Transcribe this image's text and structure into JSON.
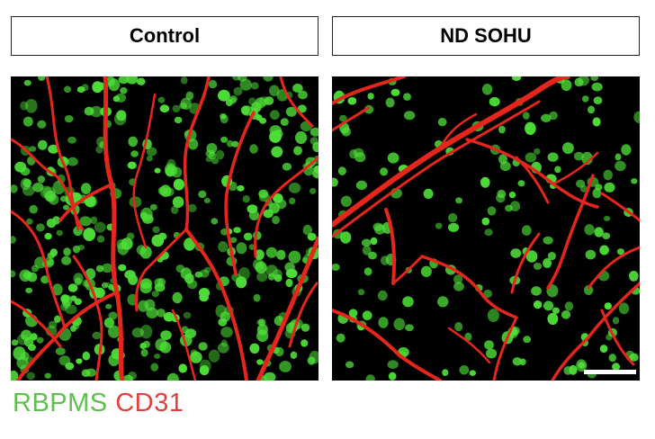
{
  "panels": [
    {
      "title": "Control"
    },
    {
      "title": "ND SOHU"
    }
  ],
  "legend": {
    "green_label": "RBPMS",
    "red_label": "CD31",
    "green_color": "#5fbf4e",
    "red_color": "#e0423a"
  },
  "colors": {
    "cell_green": "#4ede38",
    "vessel_red": "#e4261c",
    "background": "#000000"
  }
}
